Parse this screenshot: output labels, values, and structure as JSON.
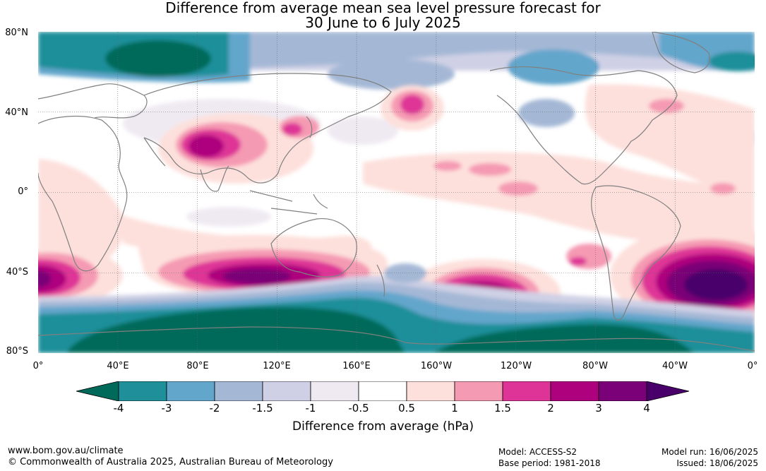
{
  "title": {
    "line1": "Difference from average mean sea level pressure forecast for",
    "line2": "30 June to 6 July 2025"
  },
  "latitude_labels": [
    "80°N",
    "40°N",
    "0°",
    "40°S",
    "80°S"
  ],
  "longitude_labels": [
    "0°",
    "40°E",
    "80°E",
    "120°E",
    "160°E",
    "160°W",
    "120°W",
    "80°W",
    "40°W",
    "0°"
  ],
  "colorbar": {
    "ticks": [
      "-4",
      "-3",
      "-2",
      "-1.5",
      "-1",
      "-0.5",
      "0.5",
      "1",
      "1.5",
      "2",
      "3",
      "4"
    ],
    "colors": [
      "#006a5a",
      "#1f8f9a",
      "#63a6cc",
      "#a4b8d6",
      "#cfd0e5",
      "#efeaf2",
      "#ffffff",
      "#fde0dc",
      "#f59ab3",
      "#de3497",
      "#ae017e",
      "#7a0177",
      "#49006a"
    ],
    "label": "Difference from average (hPa)"
  },
  "footer": {
    "url": "www.bom.gov.au/climate",
    "copyright": "© Commonwealth of Australia 2025, Australian Bureau of Meteorology",
    "model": "Model: ACCESS-S2",
    "base_period": "Base period: 1981-2018",
    "model_run": "Model run: 16/06/2025",
    "issued": "Issued: 18/06/2025"
  }
}
